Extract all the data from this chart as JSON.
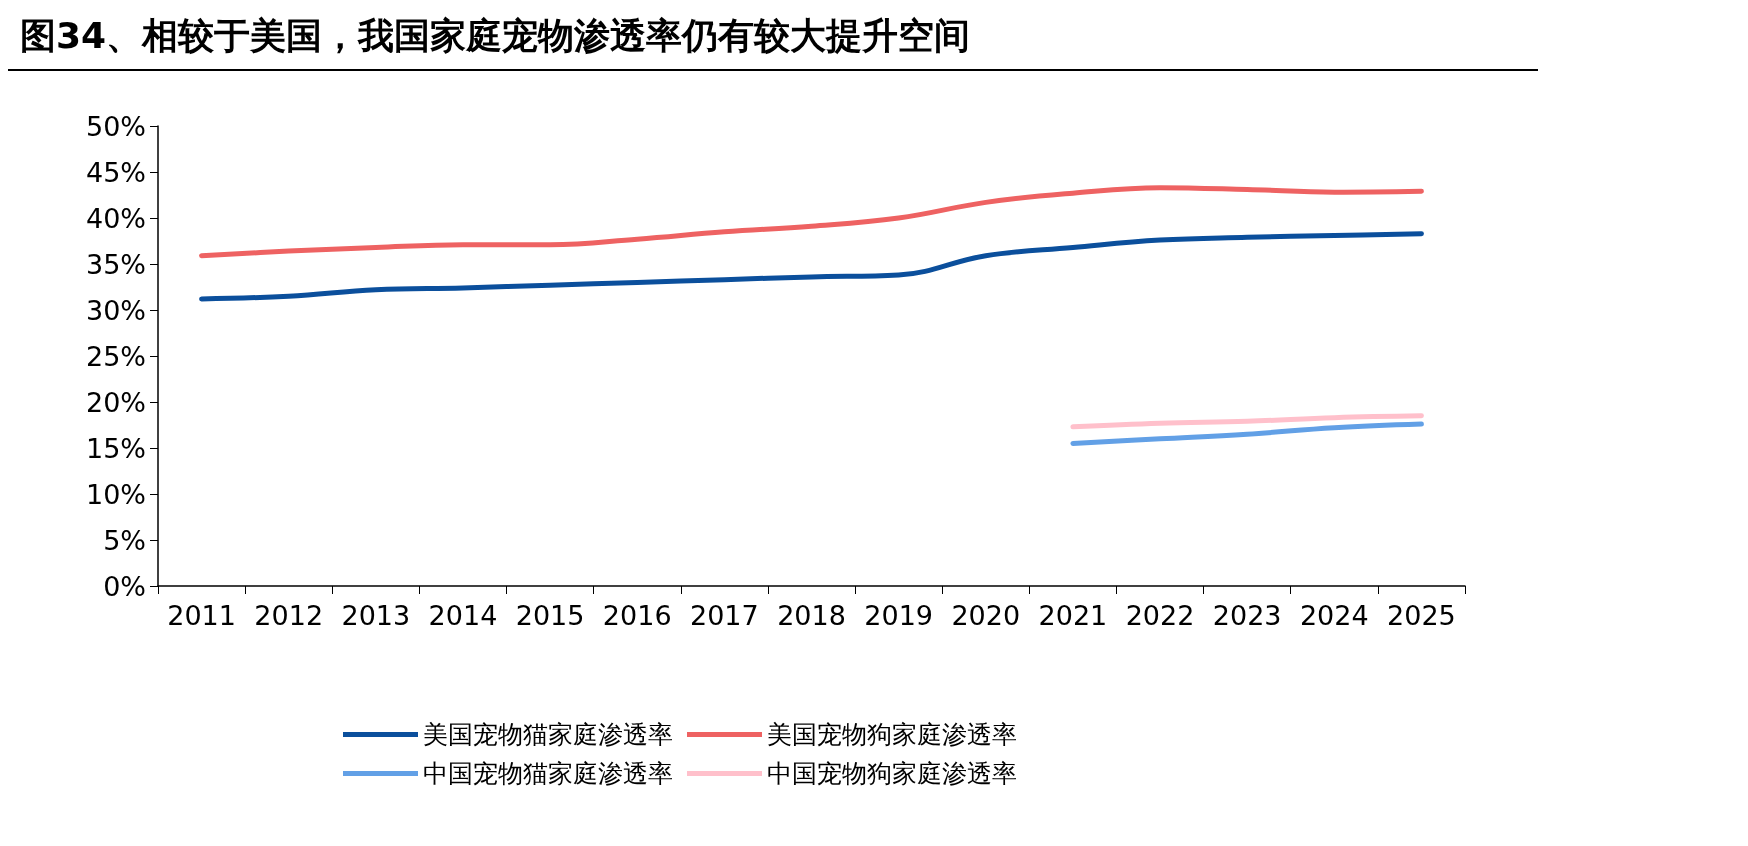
{
  "chart_data": {
    "type": "line",
    "title": "图34、相较于美国，我国家庭宠物渗透率仍有较大提升空间",
    "categories": [
      "2011",
      "2012",
      "2013",
      "2014",
      "2015",
      "2016",
      "2017",
      "2018",
      "2019",
      "2020",
      "2021",
      "2022",
      "2023",
      "2024",
      "2025"
    ],
    "series": [
      {
        "name": "美国宠物猫家庭渗透率",
        "color": "#0b4f9c",
        "values": [
          31.2,
          31.5,
          32.2,
          32.4,
          32.7,
          33.0,
          33.3,
          33.6,
          33.8,
          35.9,
          36.8,
          37.6,
          37.9,
          38.1,
          38.3
        ]
      },
      {
        "name": "美国宠物狗家庭渗透率",
        "color": "#ee6262",
        "values": [
          35.9,
          36.4,
          36.8,
          37.1,
          37.1,
          37.7,
          38.5,
          39.1,
          40.0,
          41.7,
          42.7,
          43.3,
          43.1,
          42.8,
          42.9
        ]
      },
      {
        "name": "中国宠物猫家庭渗透率",
        "color": "#62a0e6",
        "values": [
          null,
          null,
          null,
          null,
          null,
          null,
          null,
          null,
          null,
          null,
          15.5,
          16.0,
          16.5,
          17.2,
          17.6
        ]
      },
      {
        "name": "中国宠物狗家庭渗透率",
        "color": "#ffc0cb",
        "values": [
          null,
          null,
          null,
          null,
          null,
          null,
          null,
          null,
          null,
          null,
          17.3,
          17.7,
          17.9,
          18.3,
          18.5
        ]
      }
    ],
    "ylim": [
      0,
      50
    ],
    "yticks": [
      {
        "value": 0,
        "label": "0%"
      },
      {
        "value": 5,
        "label": "5%"
      },
      {
        "value": 10,
        "label": "10%"
      },
      {
        "value": 15,
        "label": "15%"
      },
      {
        "value": 20,
        "label": "20%"
      },
      {
        "value": 25,
        "label": "25%"
      },
      {
        "value": 30,
        "label": "30%"
      },
      {
        "value": 35,
        "label": "35%"
      },
      {
        "value": 40,
        "label": "40%"
      },
      {
        "value": 45,
        "label": "45%"
      },
      {
        "value": 50,
        "label": "50%"
      }
    ],
    "grid": false,
    "legend": "bottom",
    "marker": "none",
    "line_style": "solid"
  }
}
